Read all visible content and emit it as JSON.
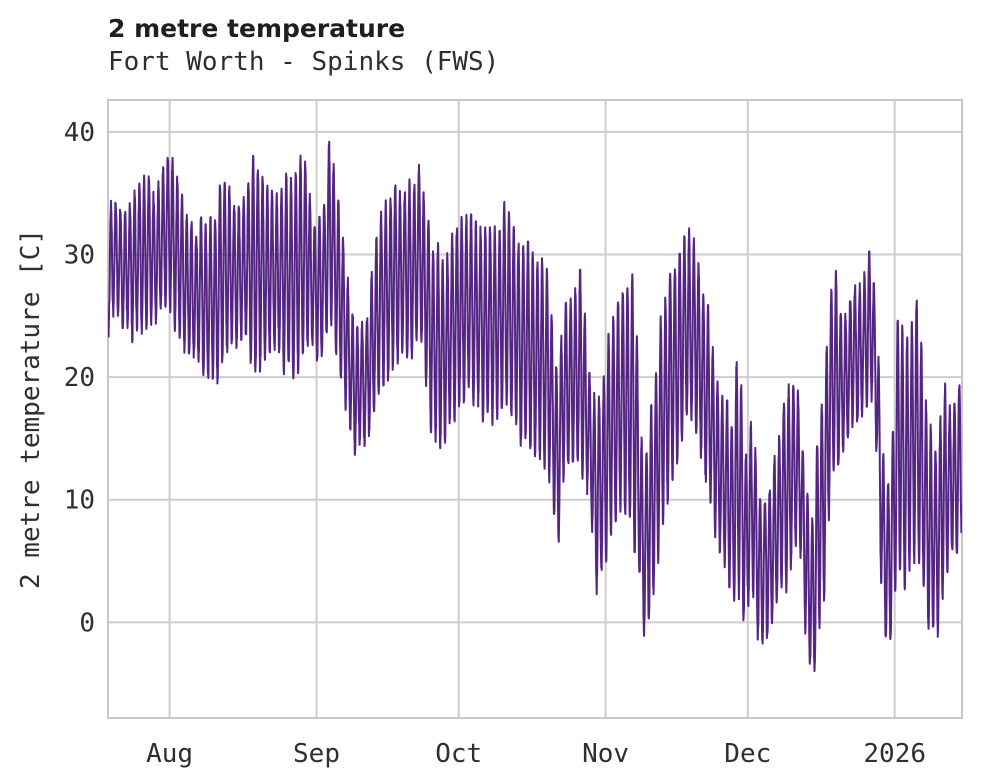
{
  "header": {
    "title": "2 metre temperature",
    "subtitle": "Fort Worth - Spinks (FWS)"
  },
  "style": {
    "background": "#ffffff",
    "line_color": "#552583",
    "grid_color": "#cdcdcd",
    "border_color": "#c8c8c8",
    "title_color": "#1f1f1f",
    "text_color": "#2f2f2f"
  },
  "chart_data": {
    "type": "line",
    "title": "2 metre temperature",
    "subtitle": "Fort Worth - Spinks (FWS)",
    "xlabel": "",
    "ylabel": "2 metre temperature [C]",
    "grid": true,
    "legend": false,
    "ylim": [
      -7.8,
      42.6
    ],
    "y_ticks": [
      0,
      10,
      20,
      30,
      40
    ],
    "x_ticks": [
      {
        "label": "Aug",
        "day": 13
      },
      {
        "label": "Sep",
        "day": 44
      },
      {
        "label": "Oct",
        "day": 74
      },
      {
        "label": "Nov",
        "day": 105
      },
      {
        "label": "Dec",
        "day": 135
      },
      {
        "label": "2026",
        "day": 166
      }
    ],
    "x_range_days": [
      0,
      180.2
    ],
    "x_note": "day 0 = left edge of plot; labeled gridlines mark month starts, '2026' = Jan 1",
    "series": [
      {
        "name": "2 metre temperature [C]",
        "color": "#552583",
        "cadence": "hourly",
        "envelope_note": "estimated daily [day, min C, max C] anchors read from the plot; the hourly trace oscillates diurnally between daily min and max",
        "daily_envelope_anchors": [
          [
            0,
            24,
            33.5
          ],
          [
            2,
            25,
            34.5
          ],
          [
            4,
            24,
            33
          ],
          [
            6,
            23.5,
            35.5
          ],
          [
            8,
            24.5,
            36.5
          ],
          [
            10,
            25,
            35
          ],
          [
            12,
            26,
            37.5
          ],
          [
            13,
            26,
            39
          ],
          [
            14,
            24.5,
            36.5
          ],
          [
            16,
            23,
            34.5
          ],
          [
            18,
            21.5,
            32
          ],
          [
            20,
            21,
            33
          ],
          [
            23,
            19.5,
            33
          ],
          [
            24,
            21.5,
            35.9
          ],
          [
            25,
            22,
            35.5
          ],
          [
            27,
            22.5,
            33.5
          ],
          [
            29,
            23,
            34.5
          ],
          [
            31,
            20.5,
            38
          ],
          [
            33,
            22,
            36.5
          ],
          [
            35,
            22.5,
            34
          ],
          [
            37,
            21,
            35.5
          ],
          [
            39,
            20,
            36
          ],
          [
            42,
            23,
            38
          ],
          [
            43,
            23,
            34
          ],
          [
            45,
            21,
            32
          ],
          [
            46,
            23,
            36
          ],
          [
            47,
            24,
            40.2
          ],
          [
            48,
            22,
            36.5
          ],
          [
            50,
            18,
            29
          ],
          [
            52,
            14.5,
            25
          ],
          [
            54,
            14.2,
            23.5
          ],
          [
            56,
            16.5,
            30
          ],
          [
            58,
            19.5,
            34
          ],
          [
            60,
            20.5,
            35.5
          ],
          [
            62,
            21.5,
            34.5
          ],
          [
            64,
            22,
            36
          ],
          [
            66,
            23,
            37.2
          ],
          [
            68,
            16.5,
            31.5
          ],
          [
            70,
            14.5,
            29.5
          ],
          [
            72,
            15.5,
            30.5
          ],
          [
            74,
            17.5,
            32.5
          ],
          [
            76,
            19,
            33.5
          ],
          [
            78,
            18,
            33
          ],
          [
            80,
            16.5,
            31
          ],
          [
            82,
            17,
            32.5
          ],
          [
            84,
            18,
            33.5
          ],
          [
            86,
            16,
            31.5
          ],
          [
            88,
            14.5,
            30.5
          ],
          [
            90,
            13.5,
            30
          ],
          [
            92,
            13,
            29
          ],
          [
            93,
            13,
            27
          ],
          [
            95,
            6.2,
            20
          ],
          [
            96,
            12,
            25
          ],
          [
            98,
            13.5,
            26.5
          ],
          [
            100,
            13,
            28.5
          ],
          [
            102,
            8,
            19
          ],
          [
            103,
            2.5,
            17
          ],
          [
            104,
            4,
            18
          ],
          [
            105,
            5,
            22
          ],
          [
            107,
            8,
            26
          ],
          [
            109,
            9.5,
            28
          ],
          [
            111,
            6.5,
            28
          ],
          [
            112,
            4,
            20
          ],
          [
            113,
            -1.5,
            12
          ],
          [
            115,
            2.5,
            18
          ],
          [
            117,
            8,
            26
          ],
          [
            119,
            12,
            28.5
          ],
          [
            121,
            15,
            31
          ],
          [
            122,
            17,
            32
          ],
          [
            124,
            16,
            30.5
          ],
          [
            126,
            12,
            26.5
          ],
          [
            128,
            8,
            21
          ],
          [
            130,
            5,
            18
          ],
          [
            132,
            2.4,
            16
          ],
          [
            133,
            2.4,
            23.4
          ],
          [
            134,
            1,
            15
          ],
          [
            135,
            1,
            13
          ],
          [
            136,
            3,
            18
          ],
          [
            137,
            -1.5,
            12
          ],
          [
            138,
            -2.5,
            10
          ],
          [
            139,
            -1,
            11
          ],
          [
            140,
            0,
            12
          ],
          [
            141,
            1.5,
            14
          ],
          [
            143,
            3,
            19.5
          ],
          [
            145,
            6,
            20
          ],
          [
            146,
            7,
            17
          ],
          [
            147,
            0.5,
            12
          ],
          [
            148,
            -3.5,
            9
          ],
          [
            149,
            -4.8,
            8.5
          ],
          [
            150,
            -1,
            17
          ],
          [
            151,
            2,
            19
          ],
          [
            152,
            8,
            25
          ],
          [
            153,
            12,
            29.2
          ],
          [
            155,
            14,
            25
          ],
          [
            157,
            15.5,
            27
          ],
          [
            159,
            16.5,
            28
          ],
          [
            161,
            18,
            31
          ],
          [
            162,
            16,
            26.5
          ],
          [
            163,
            5,
            18
          ],
          [
            164,
            -1,
            12
          ],
          [
            165,
            -1.2,
            10
          ],
          [
            166,
            2,
            20
          ],
          [
            167,
            5,
            26.5
          ],
          [
            168,
            3,
            22
          ],
          [
            170,
            5.5,
            25
          ],
          [
            171,
            6,
            26.3
          ],
          [
            172,
            2.5,
            20
          ],
          [
            173,
            -0.5,
            17.5
          ],
          [
            175,
            -1,
            12
          ],
          [
            176,
            1.5,
            19
          ],
          [
            178,
            5.5,
            17
          ],
          [
            180,
            7,
            18.8
          ]
        ]
      }
    ]
  }
}
